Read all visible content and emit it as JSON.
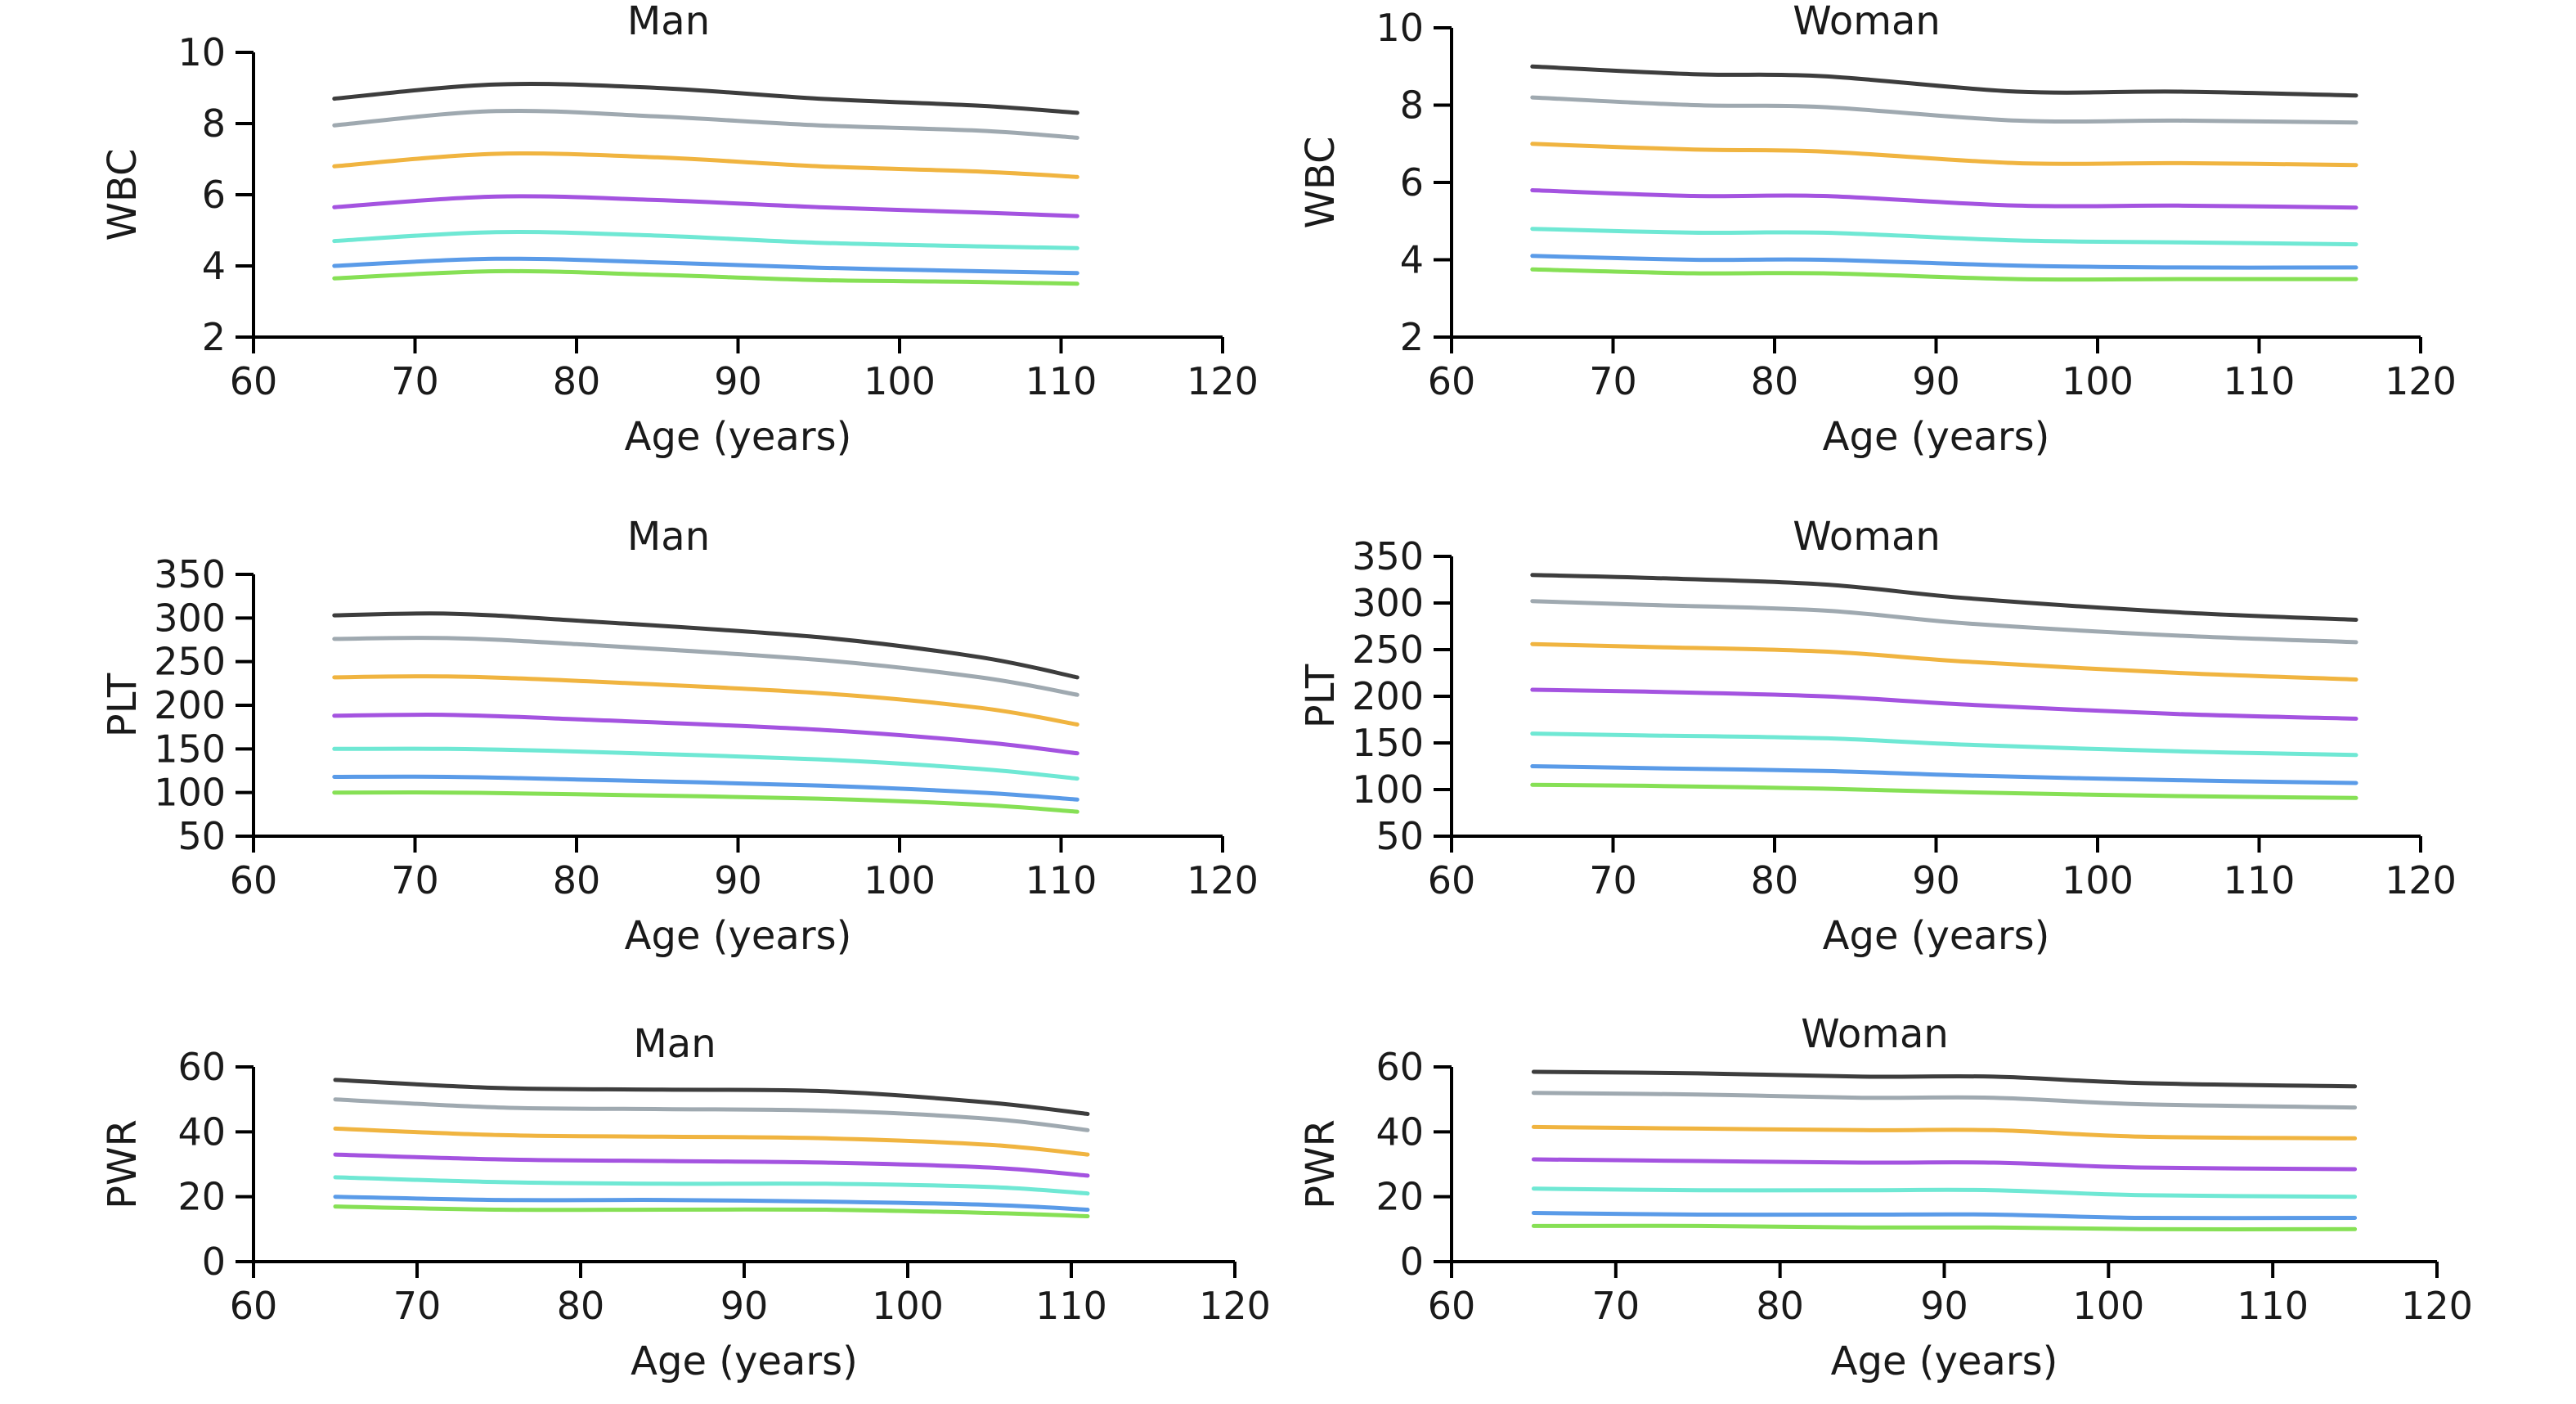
{
  "chart_data": [
    {
      "type": "line",
      "title": "Man",
      "xlabel": "Age (years)",
      "ylabel": "WBC",
      "xlim": [
        60,
        120
      ],
      "ylim": [
        2,
        10
      ],
      "x_ticks": [
        60,
        70,
        80,
        90,
        100,
        110,
        120
      ],
      "y_ticks": [
        2,
        4,
        6,
        8,
        10
      ],
      "x": [
        65,
        75,
        85,
        95,
        105,
        111
      ],
      "series": [
        {
          "color": "#3d3d3d",
          "values": [
            8.7,
            9.1,
            9.0,
            8.7,
            8.5,
            8.3
          ]
        },
        {
          "color": "#9fa9b0",
          "values": [
            7.95,
            8.35,
            8.2,
            7.95,
            7.8,
            7.6
          ]
        },
        {
          "color": "#f0b440",
          "values": [
            6.8,
            7.15,
            7.05,
            6.8,
            6.65,
            6.5
          ]
        },
        {
          "color": "#a453e0",
          "values": [
            5.65,
            5.95,
            5.85,
            5.65,
            5.5,
            5.4
          ]
        },
        {
          "color": "#6fe8d4",
          "values": [
            4.7,
            4.95,
            4.85,
            4.65,
            4.55,
            4.5
          ]
        },
        {
          "color": "#5a9be8",
          "values": [
            4.0,
            4.2,
            4.1,
            3.95,
            3.85,
            3.8
          ]
        },
        {
          "color": "#86e055",
          "values": [
            3.65,
            3.85,
            3.75,
            3.6,
            3.55,
            3.5
          ]
        }
      ]
    },
    {
      "type": "line",
      "title": "Woman",
      "xlabel": "Age (years)",
      "ylabel": "WBC",
      "xlim": [
        60,
        120
      ],
      "ylim": [
        2,
        10
      ],
      "x_ticks": [
        60,
        70,
        80,
        90,
        100,
        110,
        120
      ],
      "y_ticks": [
        2,
        4,
        6,
        8,
        10
      ],
      "x": [
        65,
        75,
        83,
        95,
        105,
        116
      ],
      "series": [
        {
          "color": "#3d3d3d",
          "values": [
            9.0,
            8.8,
            8.75,
            8.35,
            8.35,
            8.25
          ]
        },
        {
          "color": "#9fa9b0",
          "values": [
            8.2,
            8.0,
            7.95,
            7.6,
            7.6,
            7.55
          ]
        },
        {
          "color": "#f0b440",
          "values": [
            7.0,
            6.85,
            6.8,
            6.5,
            6.5,
            6.45
          ]
        },
        {
          "color": "#a453e0",
          "values": [
            5.8,
            5.65,
            5.65,
            5.4,
            5.4,
            5.35
          ]
        },
        {
          "color": "#6fe8d4",
          "values": [
            4.8,
            4.7,
            4.7,
            4.5,
            4.45,
            4.4
          ]
        },
        {
          "color": "#5a9be8",
          "values": [
            4.1,
            4.0,
            4.0,
            3.85,
            3.8,
            3.8
          ]
        },
        {
          "color": "#86e055",
          "values": [
            3.75,
            3.65,
            3.65,
            3.5,
            3.5,
            3.5
          ]
        }
      ]
    },
    {
      "type": "line",
      "title": "Man",
      "xlabel": "Age (years)",
      "ylabel": "PLT",
      "xlim": [
        60,
        120
      ],
      "ylim": [
        50,
        350
      ],
      "x_ticks": [
        60,
        70,
        80,
        90,
        100,
        110,
        120
      ],
      "y_ticks": [
        50,
        100,
        150,
        200,
        250,
        300,
        350
      ],
      "x": [
        65,
        72,
        80,
        95,
        105,
        111
      ],
      "series": [
        {
          "color": "#3d3d3d",
          "values": [
            303,
            305,
            297,
            278,
            255,
            232
          ]
        },
        {
          "color": "#9fa9b0",
          "values": [
            276,
            277,
            270,
            252,
            232,
            212
          ]
        },
        {
          "color": "#f0b440",
          "values": [
            232,
            233,
            228,
            214,
            197,
            178
          ]
        },
        {
          "color": "#a453e0",
          "values": [
            188,
            189,
            184,
            172,
            158,
            145
          ]
        },
        {
          "color": "#6fe8d4",
          "values": [
            150,
            150,
            147,
            138,
            127,
            116
          ]
        },
        {
          "color": "#5a9be8",
          "values": [
            118,
            118,
            115,
            108,
            100,
            92
          ]
        },
        {
          "color": "#86e055",
          "values": [
            100,
            100,
            98,
            93,
            86,
            78
          ]
        }
      ]
    },
    {
      "type": "line",
      "title": "Woman",
      "xlabel": "Age (years)",
      "ylabel": "PLT",
      "xlim": [
        60,
        120
      ],
      "ylim": [
        50,
        350
      ],
      "x_ticks": [
        60,
        70,
        80,
        90,
        100,
        110,
        120
      ],
      "y_ticks": [
        50,
        100,
        150,
        200,
        250,
        300,
        350
      ],
      "x": [
        65,
        72,
        83,
        92,
        105,
        116
      ],
      "series": [
        {
          "color": "#3d3d3d",
          "values": [
            330,
            327,
            320,
            305,
            290,
            282
          ]
        },
        {
          "color": "#9fa9b0",
          "values": [
            302,
            298,
            292,
            278,
            265,
            258
          ]
        },
        {
          "color": "#f0b440",
          "values": [
            256,
            253,
            248,
            237,
            225,
            218
          ]
        },
        {
          "color": "#a453e0",
          "values": [
            207,
            205,
            200,
            191,
            181,
            176
          ]
        },
        {
          "color": "#6fe8d4",
          "values": [
            160,
            158,
            155,
            148,
            141,
            137
          ]
        },
        {
          "color": "#5a9be8",
          "values": [
            125,
            123,
            120,
            115,
            110,
            107
          ]
        },
        {
          "color": "#86e055",
          "values": [
            105,
            104,
            101,
            97,
            93,
            91
          ]
        }
      ]
    },
    {
      "type": "line",
      "title": "Man",
      "xlabel": "Age (years)",
      "ylabel": "PWR",
      "xlim": [
        60,
        120
      ],
      "ylim": [
        0,
        60
      ],
      "x_ticks": [
        60,
        70,
        80,
        90,
        100,
        110,
        120
      ],
      "y_ticks": [
        0,
        20,
        40,
        60
      ],
      "x": [
        65,
        75,
        85,
        95,
        105,
        111
      ],
      "series": [
        {
          "color": "#3d3d3d",
          "values": [
            56,
            53.5,
            53,
            52.5,
            49,
            45.5
          ]
        },
        {
          "color": "#9fa9b0",
          "values": [
            50,
            47.5,
            47,
            46.5,
            44,
            40.5
          ]
        },
        {
          "color": "#f0b440",
          "values": [
            41,
            39,
            38.5,
            38,
            36,
            33
          ]
        },
        {
          "color": "#a453e0",
          "values": [
            33,
            31.5,
            31,
            30.5,
            29,
            26.5
          ]
        },
        {
          "color": "#6fe8d4",
          "values": [
            26,
            24.5,
            24,
            24,
            23,
            21
          ]
        },
        {
          "color": "#5a9be8",
          "values": [
            20,
            19,
            19,
            18.5,
            17.5,
            16
          ]
        },
        {
          "color": "#86e055",
          "values": [
            17,
            16,
            16,
            16,
            15,
            14
          ]
        }
      ]
    },
    {
      "type": "line",
      "title": "Woman",
      "xlabel": "Age (years)",
      "ylabel": "PWR",
      "xlim": [
        60,
        120
      ],
      "ylim": [
        0,
        60
      ],
      "x_ticks": [
        60,
        70,
        80,
        90,
        100,
        110,
        120
      ],
      "y_ticks": [
        0,
        20,
        40,
        60
      ],
      "x": [
        65,
        75,
        85,
        93,
        102,
        115
      ],
      "series": [
        {
          "color": "#3d3d3d",
          "values": [
            58.5,
            58,
            57,
            57,
            55,
            54
          ]
        },
        {
          "color": "#9fa9b0",
          "values": [
            52,
            51.5,
            50.5,
            50.5,
            48.5,
            47.5
          ]
        },
        {
          "color": "#f0b440",
          "values": [
            41.5,
            41,
            40.5,
            40.5,
            38.5,
            38
          ]
        },
        {
          "color": "#a453e0",
          "values": [
            31.5,
            31,
            30.5,
            30.5,
            29,
            28.5
          ]
        },
        {
          "color": "#6fe8d4",
          "values": [
            22.5,
            22,
            22,
            22,
            20.5,
            20
          ]
        },
        {
          "color": "#5a9be8",
          "values": [
            15,
            14.5,
            14.5,
            14.5,
            13.5,
            13.5
          ]
        },
        {
          "color": "#86e055",
          "values": [
            11,
            11,
            10.5,
            10.5,
            10,
            10
          ]
        }
      ]
    }
  ]
}
